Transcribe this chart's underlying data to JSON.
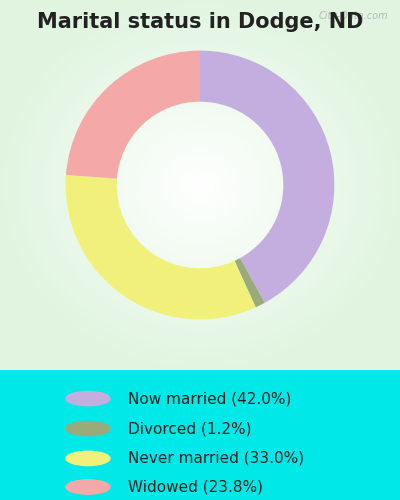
{
  "title": "Marital status in Dodge, ND",
  "slices": [
    {
      "label": "Now married (42.0%)",
      "value": 42.0,
      "color": "#c4aee0"
    },
    {
      "label": "Divorced (1.2%)",
      "value": 1.2,
      "color": "#9aab7a"
    },
    {
      "label": "Never married (33.0%)",
      "value": 33.0,
      "color": "#f0f07a"
    },
    {
      "label": "Widowed (23.8%)",
      "value": 23.8,
      "color": "#f5a8a8"
    }
  ],
  "bg_cyan": "#00e8e8",
  "title_fontsize": 15,
  "legend_fontsize": 11,
  "watermark": "City-Data.com",
  "start_angle": 90,
  "donut_width": 0.38
}
